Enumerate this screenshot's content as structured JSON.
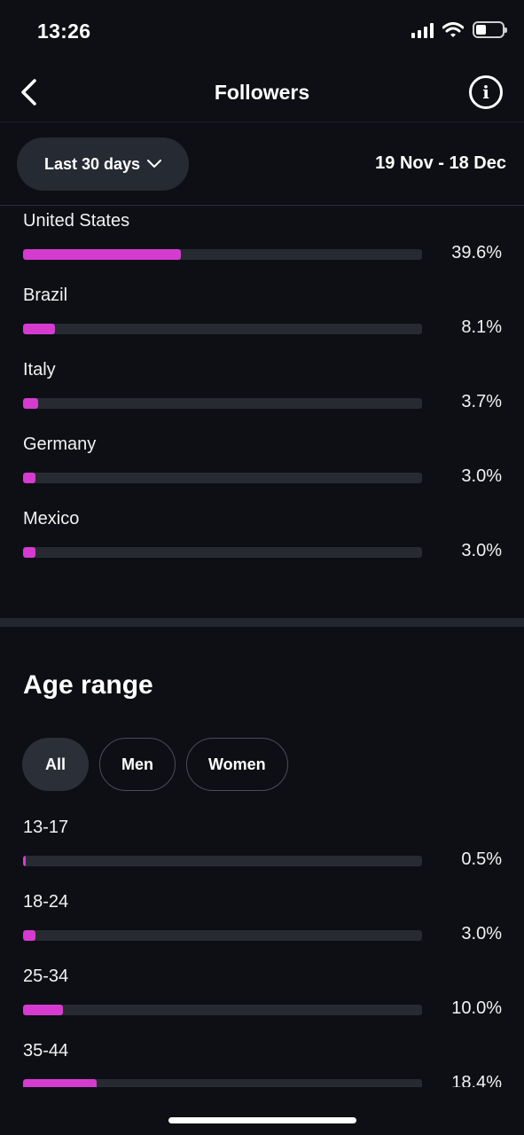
{
  "status_bar": {
    "time": "13:26"
  },
  "header": {
    "title": "Followers",
    "back_icon": "chevron-left-icon",
    "info_icon": "info-icon"
  },
  "date_range": {
    "selected": "Last 30 days",
    "dates": "19 Nov - 18 Dec"
  },
  "colors": {
    "accent": "#d63bd0",
    "track": "#272a31",
    "background": "#0d0f14"
  },
  "countries": [
    {
      "label": "United States",
      "value": "39.6%",
      "pct": 39.6
    },
    {
      "label": "Brazil",
      "value": "8.1%",
      "pct": 8.1
    },
    {
      "label": "Italy",
      "value": "3.7%",
      "pct": 3.7
    },
    {
      "label": "Germany",
      "value": "3.0%",
      "pct": 3.0
    },
    {
      "label": "Mexico",
      "value": "3.0%",
      "pct": 3.0
    }
  ],
  "age_range": {
    "title": "Age range",
    "filters": [
      "All",
      "Men",
      "Women"
    ],
    "active_filter": "All",
    "items": [
      {
        "label": "13-17",
        "value": "0.5%",
        "pct": 0.5
      },
      {
        "label": "18-24",
        "value": "3.0%",
        "pct": 3.0
      },
      {
        "label": "25-34",
        "value": "10.0%",
        "pct": 10.0
      },
      {
        "label": "35-44",
        "value": "18.4%",
        "pct": 18.4
      }
    ]
  }
}
